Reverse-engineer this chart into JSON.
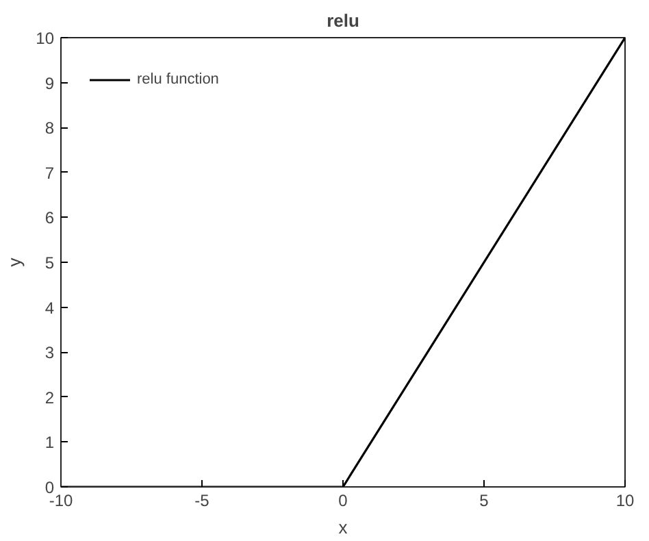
{
  "chart_data": {
    "type": "line",
    "title": "relu",
    "xlabel": "x",
    "ylabel": "y",
    "x": [
      -10,
      0,
      10
    ],
    "series": [
      {
        "name": "relu function",
        "color": "#000000",
        "values": [
          0,
          0,
          10
        ]
      }
    ],
    "xlim": [
      -10,
      10
    ],
    "ylim": [
      0,
      10
    ],
    "xticks": [
      -10,
      -5,
      0,
      5,
      10
    ],
    "yticks": [
      0,
      1,
      2,
      3,
      4,
      5,
      6,
      7,
      8,
      9,
      10
    ],
    "grid": false,
    "legend": "top left",
    "marker": "none",
    "line_style": "solid"
  }
}
